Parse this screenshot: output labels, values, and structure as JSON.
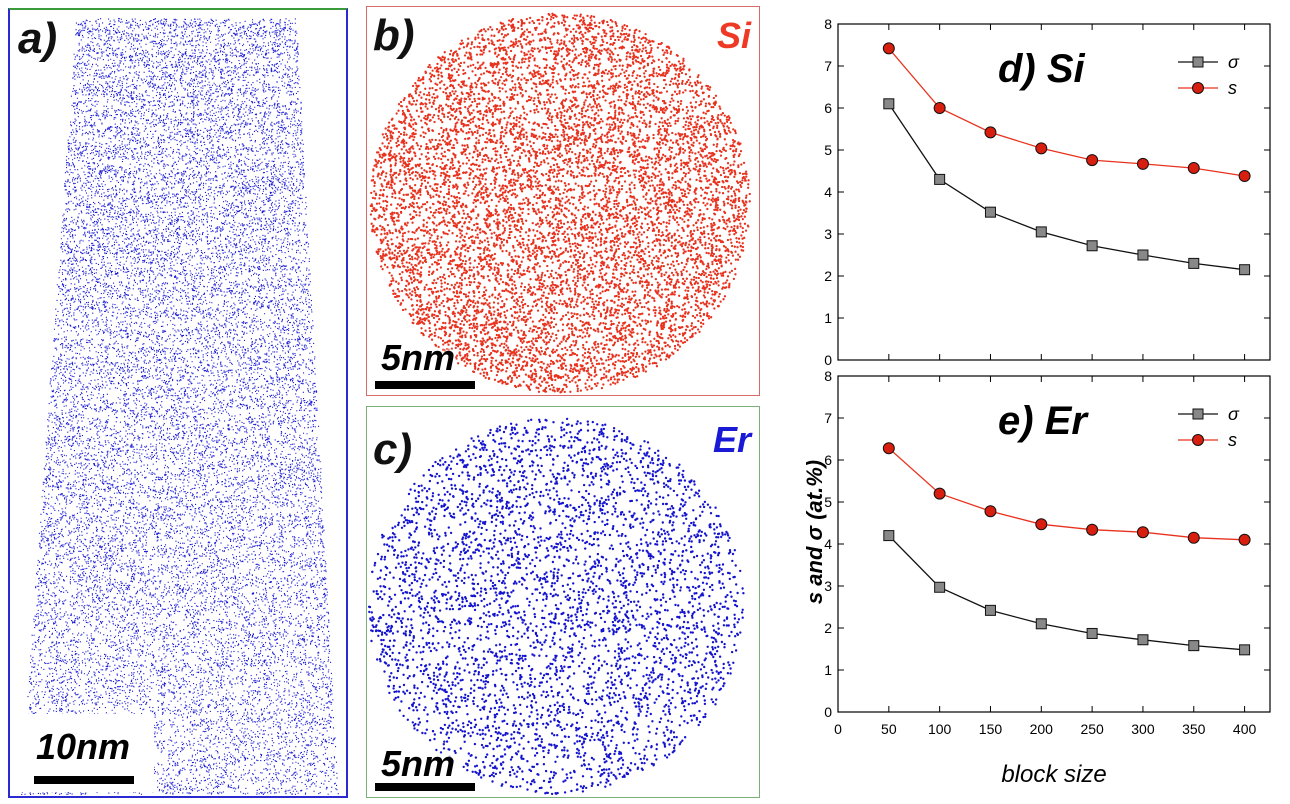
{
  "panels": {
    "a": {
      "label": "a)",
      "scale_label": "10nm",
      "atom_color": "#1a1ad6"
    },
    "b": {
      "label": "b)",
      "element": "Si",
      "element_color": "#ee3a24",
      "scale_label": "5nm",
      "atom_color": "#e8321e"
    },
    "c": {
      "label": "c)",
      "element": "Er",
      "element_color": "#1a1ad6",
      "scale_label": "5nm",
      "atom_color": "#1414d0"
    }
  },
  "chart_data": [
    {
      "type": "line",
      "title": "d) Si",
      "x": [
        50,
        100,
        150,
        200,
        250,
        300,
        350,
        400
      ],
      "series": [
        {
          "name": "σ",
          "values": [
            6.1,
            4.3,
            3.52,
            3.05,
            2.72,
            2.5,
            2.3,
            2.15
          ],
          "color": "#111111",
          "marker": "square",
          "marker_fill": "#888888"
        },
        {
          "name": "s",
          "values": [
            7.42,
            6.0,
            5.42,
            5.04,
            4.76,
            4.67,
            4.57,
            4.38
          ],
          "color": "#e8321e",
          "marker": "circle",
          "marker_fill": "#d81e0e"
        }
      ],
      "xlim": [
        0,
        425
      ],
      "ylim": [
        0,
        8
      ],
      "xticks": [
        0,
        50,
        100,
        150,
        200,
        250,
        300,
        350,
        400
      ],
      "yticks": [
        0,
        1,
        2,
        3,
        4,
        5,
        6,
        7,
        8
      ],
      "legend": "top-right"
    },
    {
      "type": "line",
      "title": "e) Er",
      "x": [
        50,
        100,
        150,
        200,
        250,
        300,
        350,
        400
      ],
      "series": [
        {
          "name": "σ",
          "values": [
            4.2,
            2.97,
            2.42,
            2.1,
            1.87,
            1.72,
            1.58,
            1.48
          ],
          "color": "#111111",
          "marker": "square",
          "marker_fill": "#888888"
        },
        {
          "name": "s",
          "values": [
            6.28,
            5.2,
            4.78,
            4.47,
            4.34,
            4.28,
            4.15,
            4.1
          ],
          "color": "#e8321e",
          "marker": "circle",
          "marker_fill": "#d81e0e"
        }
      ],
      "xlim": [
        0,
        425
      ],
      "ylim": [
        0,
        8
      ],
      "xticks": [
        0,
        50,
        100,
        150,
        200,
        250,
        300,
        350,
        400
      ],
      "yticks": [
        0,
        1,
        2,
        3,
        4,
        5,
        6,
        7,
        8
      ],
      "legend": "top-right"
    }
  ],
  "axes": {
    "ylabel": "s and σ (at.%)",
    "xlabel": "block size"
  }
}
